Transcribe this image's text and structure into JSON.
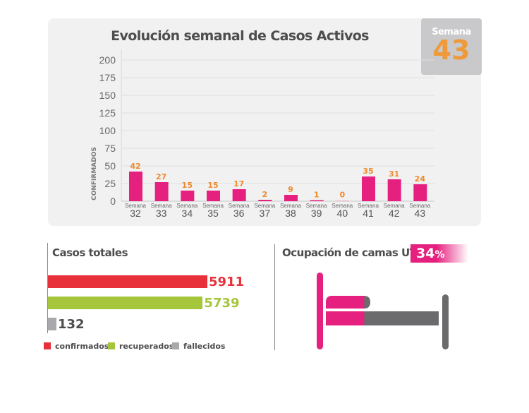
{
  "colors": {
    "bar": "#e6207f",
    "value_label": "#ef8a2f",
    "confirmados": "#e8303a",
    "recuperados": "#a5c63b",
    "fallecidos": "#a9a9ad",
    "bed_gray": "#6b6b6e"
  },
  "badge": {
    "label": "Semana",
    "number": "43"
  },
  "chart_data": {
    "type": "bar",
    "title": "Evolución semanal de Casos Activos",
    "ylabel": "CONFIRMADOS",
    "xlabel": "",
    "ylim": [
      0,
      200
    ],
    "yticks": [
      "0",
      "25",
      "50",
      "75",
      "100",
      "125",
      "150",
      "175",
      "200"
    ],
    "grid": true,
    "category_prefix": "Semana",
    "categories": [
      "32",
      "33",
      "34",
      "35",
      "36",
      "37",
      "38",
      "39",
      "40",
      "41",
      "42",
      "43"
    ],
    "values": [
      42,
      27,
      15,
      15,
      17,
      2,
      9,
      1,
      0,
      35,
      31,
      24
    ]
  },
  "totales": {
    "title": "Casos totales",
    "items": [
      {
        "key": "confirmados",
        "value": 5911
      },
      {
        "key": "recuperados",
        "value": 5739
      },
      {
        "key": "fallecidos",
        "value": 132
      }
    ],
    "legend": [
      "confirmados",
      "recuperados",
      "fallecidos"
    ]
  },
  "camas": {
    "title": "Ocupación de camas UTI",
    "percent": "34",
    "percent_sign": "%",
    "occupancy": 0.34
  }
}
